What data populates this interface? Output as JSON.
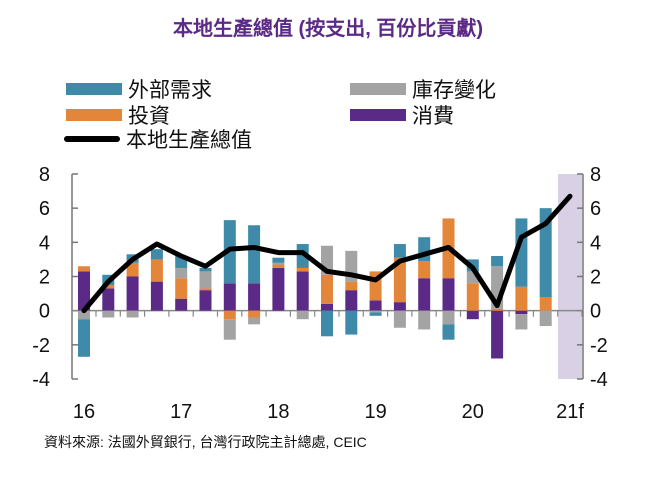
{
  "title": "本地生產總值 (按支出, 百份比貢獻)",
  "source": "資料來源: 法國外貿銀行, 台灣行政院主計總處, CEIC",
  "colors": {
    "external": "#3f8aa8",
    "investment": "#e4863a",
    "inventory": "#a3a3a3",
    "consumption": "#5b2a86",
    "gdp": "#000000",
    "forecast_shade": "#d9d0e6",
    "title": "#5b2a86"
  },
  "chart_data": {
    "type": "bar",
    "stacked": true,
    "categories": [
      "16Q1",
      "16Q2",
      "16Q3",
      "16Q4",
      "17Q1",
      "17Q2",
      "17Q3",
      "17Q4",
      "18Q1",
      "18Q2",
      "18Q3",
      "18Q4",
      "19Q1",
      "19Q2",
      "19Q3",
      "19Q4",
      "20Q1",
      "20Q2",
      "20Q3",
      "20Q4",
      "21f"
    ],
    "x_tick_labels": [
      "16",
      "17",
      "18",
      "19",
      "20",
      "21f"
    ],
    "y_tick_labels": [
      "-4",
      "-2",
      "0",
      "2",
      "4",
      "6",
      "8"
    ],
    "ylim": [
      -4,
      8
    ],
    "forecast_shaded_category": "21f",
    "legend": {
      "placement": "top",
      "entries": [
        "外部需求",
        "庫存變化",
        "投資",
        "消費",
        "本地生產總值"
      ]
    },
    "series": [
      {
        "key": "consumption",
        "name": "消費",
        "values": [
          2.3,
          1.3,
          2.0,
          1.7,
          0.7,
          1.2,
          1.6,
          1.6,
          2.5,
          2.3,
          0.4,
          1.2,
          0.6,
          0.5,
          1.9,
          1.9,
          -0.5,
          -2.8,
          -0.2,
          0,
          null
        ]
      },
      {
        "key": "investment",
        "name": "投資",
        "values": [
          0.3,
          0.2,
          0.8,
          1.3,
          1.2,
          0.1,
          -0.5,
          -0.4,
          0.2,
          0.2,
          1.7,
          0.5,
          1.7,
          2.6,
          1.0,
          3.5,
          1.6,
          0.1,
          1.4,
          0.8,
          null
        ]
      },
      {
        "key": "inventory",
        "name": "庫存變化",
        "values": [
          -0.5,
          -0.4,
          -0.4,
          0,
          0.6,
          1.0,
          -1.2,
          -0.4,
          0.1,
          -0.5,
          1.7,
          1.8,
          -0.1,
          -1.0,
          -1.1,
          -0.8,
          0.7,
          2.5,
          -0.9,
          -0.9,
          null
        ]
      },
      {
        "key": "external",
        "name": "外部需求",
        "values": [
          -2.2,
          0.6,
          0.5,
          0.6,
          0.7,
          0.2,
          3.7,
          3.4,
          0.3,
          1.4,
          -1.5,
          -1.4,
          -0.2,
          0.8,
          1.4,
          -0.9,
          0.7,
          0.6,
          4.0,
          5.2,
          null
        ]
      },
      {
        "key": "gdp",
        "name": "本地生產總值",
        "type": "line",
        "values": [
          0.0,
          1.7,
          3.0,
          3.9,
          3.2,
          2.6,
          3.6,
          3.7,
          3.4,
          3.4,
          2.3,
          2.1,
          1.8,
          2.9,
          3.3,
          3.7,
          2.5,
          0.3,
          4.3,
          5.1,
          6.7
        ]
      }
    ]
  }
}
